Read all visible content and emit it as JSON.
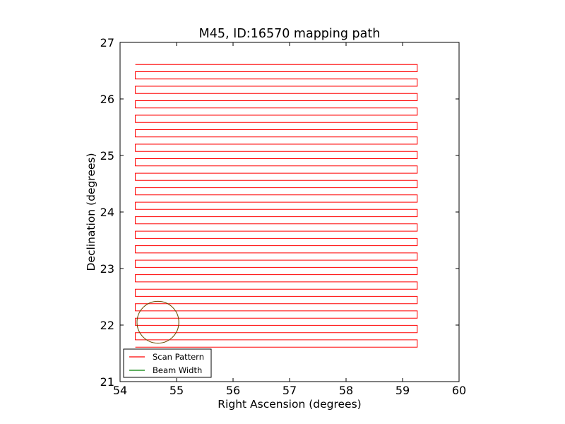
{
  "chart_data": {
    "type": "line",
    "title": "M45, ID:16570 mapping path",
    "xlabel": "Right Ascension (degrees)",
    "ylabel": "Declination (degrees)",
    "xlim": [
      54,
      60
    ],
    "ylim": [
      21,
      27
    ],
    "xticks": [
      54,
      55,
      56,
      57,
      58,
      59,
      60
    ],
    "yticks": [
      21,
      22,
      23,
      24,
      25,
      26,
      27
    ],
    "xtick_labels": [
      "54",
      "55",
      "56",
      "57",
      "58",
      "59",
      "60"
    ],
    "ytick_labels": [
      "21",
      "22",
      "23",
      "24",
      "25",
      "26",
      "27"
    ],
    "grid": false,
    "legend_position": "lower-left",
    "series": [
      {
        "name": "Scan Pattern",
        "color": "#ff0000",
        "style": "raster-scan",
        "ra_left": 54.27,
        "ra_right": 59.26,
        "dec_start": 21.61,
        "dec_end": 26.61,
        "row_spacing": 0.1282,
        "ra_end_top": 59.11
      },
      {
        "name": "Beam Width",
        "color": "#008000",
        "style": "circle",
        "center_ra": 54.67,
        "center_dec": 22.05,
        "radius_deg": 0.37
      }
    ]
  }
}
